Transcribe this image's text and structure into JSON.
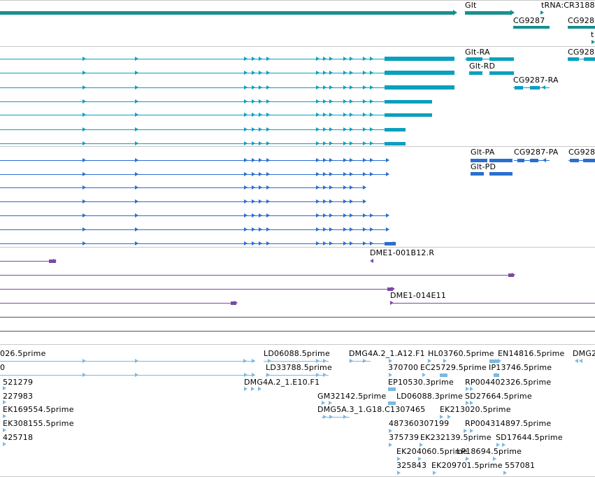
{
  "colors": {
    "gene": "#16908f",
    "transcript": "#0aa0bf",
    "protein": "#2a6fcf",
    "clone": "#7a4aa8",
    "est": "#7cb8e0",
    "separator": "#c8c8c8"
  },
  "tracks": {
    "genes": {
      "labels": [
        "Glt",
        "tRNA:CR3188",
        "CG9287",
        "CG928",
        "t"
      ]
    },
    "transcripts": {
      "labels": [
        "Glt-RA",
        "Glt-RD",
        "CG9287-RA",
        "CG928"
      ]
    },
    "proteins": {
      "labels": [
        "Glt-PA",
        "Glt-PD",
        "CG9287-PA",
        "CG928"
      ]
    },
    "clones": {
      "labels": [
        "DME1-001B12.R",
        "DME1-014E11"
      ]
    },
    "ests": {
      "labels": [
        "026.5prime",
        "0",
        "521279",
        "227983",
        "EK169554.5prime",
        "EK308155.5prime",
        "425718",
        "LD06088.5prime",
        "LD33788.5prime",
        "DMG4A.2_1.E10.F1",
        "DMG4A.2_1.A12.F1",
        "370700",
        "HL03760.5prime",
        "EC25729.5prime",
        "EN14816.5prime",
        "IP13746.5prime",
        "DMG2",
        "EP10530.3prime",
        "RP004402326.5prime",
        "GM32142.5prime",
        "LD06088.3prime",
        "SD27664.5prime",
        "DMG5A.3_1.G18.C1307465",
        "EK213020.5prime",
        "487360307199",
        "RP004314897.5prime",
        "375739",
        "EK232139.5prime",
        "SD17644.5prime",
        "EK204060.5prime",
        "LP18694.5prime",
        "325843",
        "EK209701.5prime",
        "557081"
      ]
    }
  }
}
